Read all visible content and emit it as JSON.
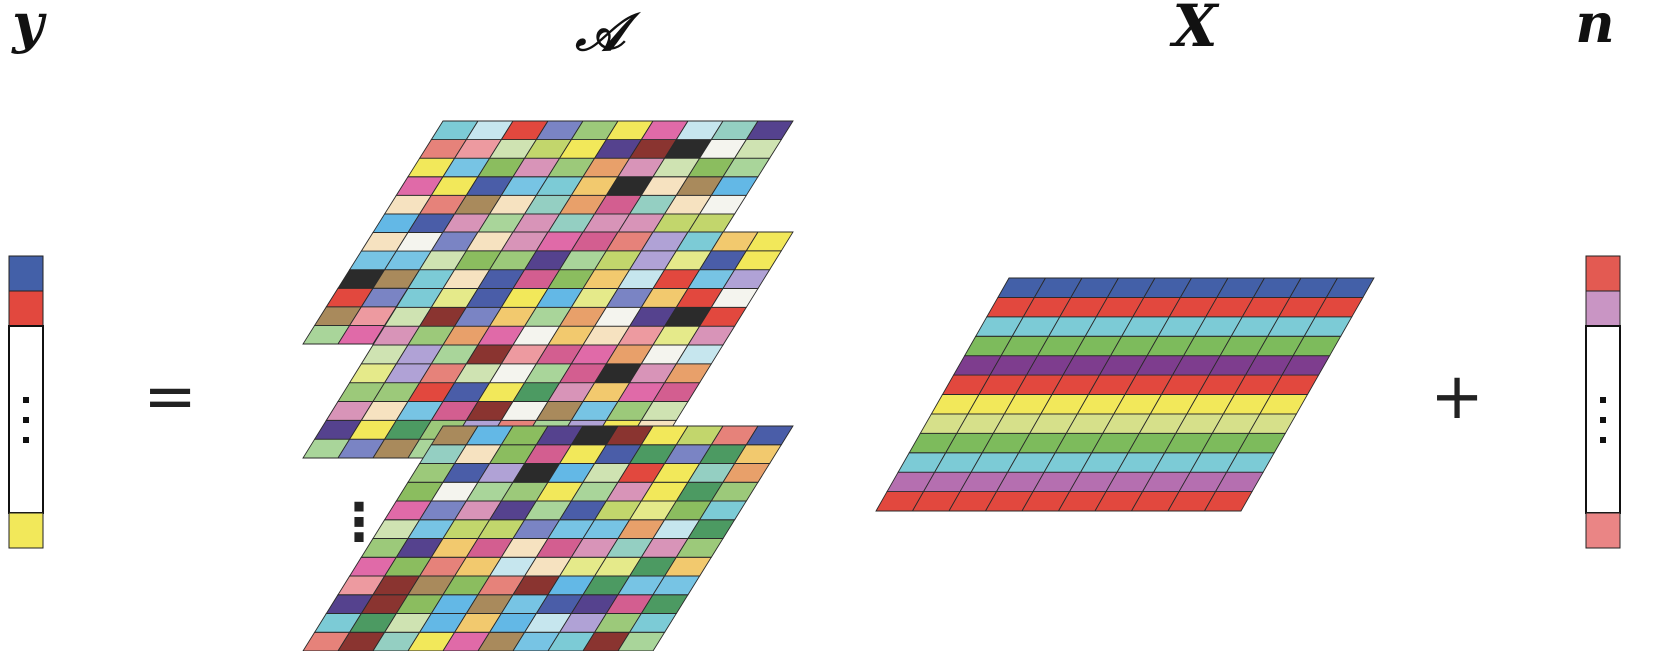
{
  "labels": {
    "y": "y",
    "A": "𝒜",
    "X": "X",
    "n": "n"
  },
  "operators": {
    "equals": "=",
    "plus": "+"
  },
  "ellipsis": "⋮",
  "palette": [
    "#f2e85a",
    "#7a84c4",
    "#9cc97a",
    "#e6827a",
    "#55428e",
    "#e2483e",
    "#7ccbd6",
    "#c2d66c",
    "#a98a5c",
    "#4a5da8",
    "#77c4e4",
    "#f2c96e",
    "#b0a2d6",
    "#d894b8",
    "#a9d59a",
    "#e5ea8a",
    "#e06aa8",
    "#8bbd5f",
    "#4c9a62",
    "#f4f4ee",
    "#2b2b2b",
    "#8a3430",
    "#f6e2c0",
    "#ed9aa0",
    "#c6e6ee",
    "#94cfc2",
    "#cfe3b2",
    "#d35e90",
    "#63b8e6",
    "#e8a06a"
  ],
  "y_vector": {
    "cells": [
      "#4360a8",
      "#e2483e",
      "#ffffff",
      "#f2e85a"
    ]
  },
  "x_matrix": {
    "row_colors": [
      "#4360a8",
      "#e2483e",
      "#7ccbd6",
      "#7dbb5c",
      "#7e3d8e",
      "#e2483e",
      "#f2e85a",
      "#d6e08a",
      "#7dbb5c",
      "#7ccbd6",
      "#b56fb0",
      "#e2483e"
    ]
  },
  "n_vector": {
    "cells": [
      "#e35a52",
      "#c995c4",
      "#ffffff",
      "#ea8585"
    ]
  }
}
